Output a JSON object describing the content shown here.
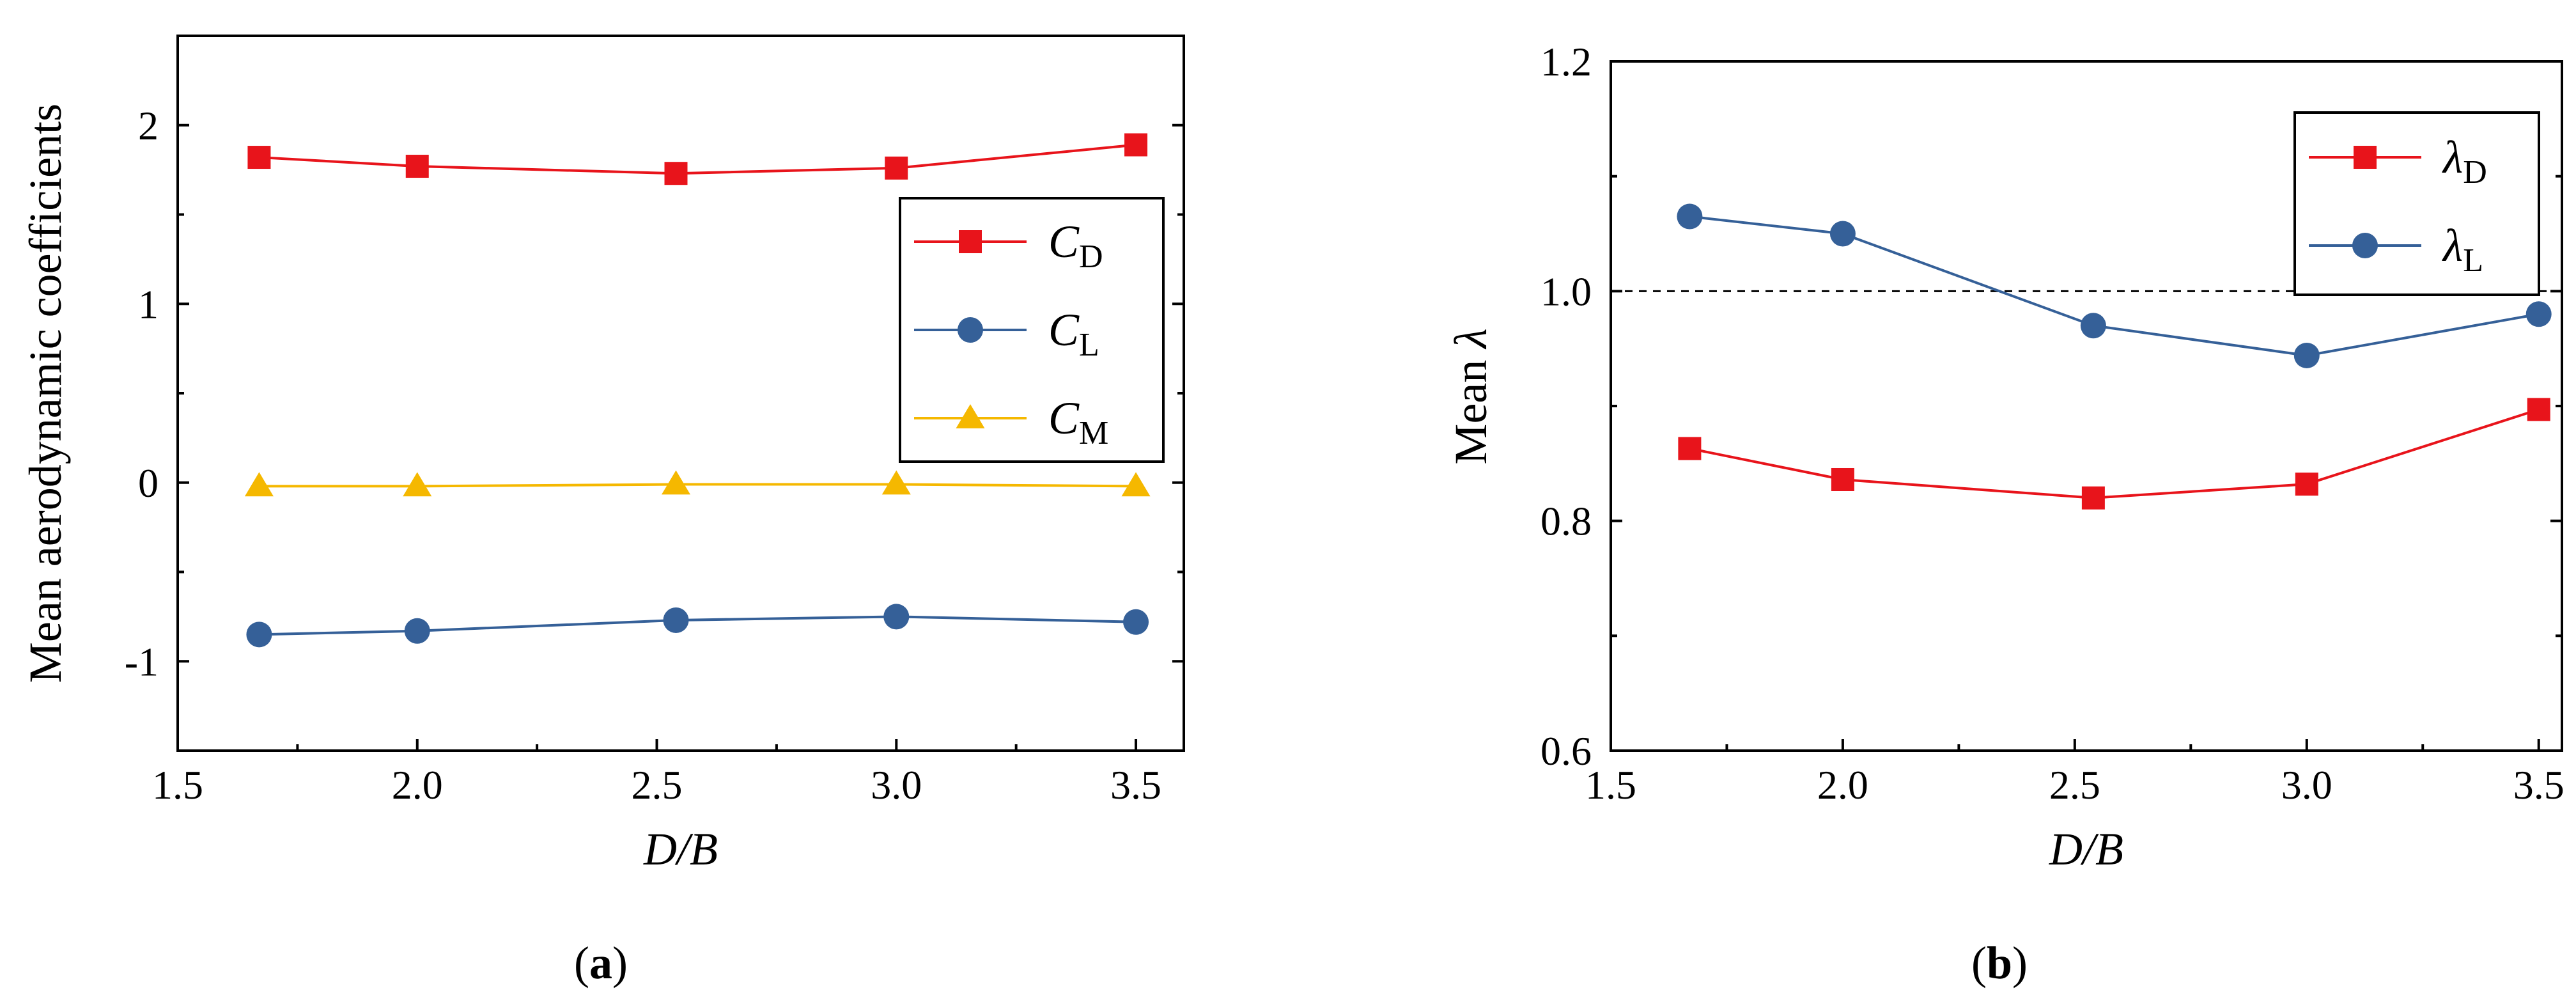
{
  "chart_data": [
    {
      "type": "line",
      "panel": "a",
      "caption": {
        "open": "(",
        "letter": "a",
        "close": ")"
      },
      "xlabel": "D/B",
      "ylabel": "Mean aerodynamic coefficients",
      "xlim": [
        1.5,
        3.6
      ],
      "ylim": [
        -1.5,
        2.5
      ],
      "xticks": [
        1.5,
        2.0,
        2.5,
        3.0,
        3.5
      ],
      "xtick_labels": [
        "1.5",
        "2.0",
        "2.5",
        "3.0",
        "3.5"
      ],
      "yticks": [
        -1,
        0,
        1,
        2
      ],
      "ytick_labels": [
        "-1",
        "0",
        "1",
        "2"
      ],
      "legend_position": "right-middle",
      "x": [
        1.67,
        2.0,
        2.54,
        3.0,
        3.5
      ],
      "series": [
        {
          "name": "C",
          "sub": "D",
          "color": "#e8141b",
          "marker": "square",
          "values": [
            1.82,
            1.77,
            1.73,
            1.76,
            1.89
          ]
        },
        {
          "name": "C",
          "sub": "L",
          "color": "#356098",
          "marker": "circle",
          "values": [
            -0.85,
            -0.83,
            -0.77,
            -0.75,
            -0.78
          ]
        },
        {
          "name": "C",
          "sub": "M",
          "color": "#f5b800",
          "marker": "triangle",
          "values": [
            -0.02,
            -0.02,
            -0.01,
            -0.01,
            -0.02
          ]
        }
      ]
    },
    {
      "type": "line",
      "panel": "b",
      "caption": {
        "open": "(",
        "letter": "b",
        "close": ")"
      },
      "xlabel": "D/B",
      "ylabel": "Mean λ",
      "ylabel_text": "Mean ",
      "ylabel_symbol": "λ",
      "xlim": [
        1.5,
        3.55
      ],
      "ylim": [
        0.6,
        1.2
      ],
      "xticks": [
        1.5,
        2.0,
        2.5,
        3.0,
        3.5
      ],
      "xtick_labels": [
        "1.5",
        "2.0",
        "2.5",
        "3.0",
        "3.5"
      ],
      "yticks": [
        0.6,
        0.8,
        1.0,
        1.2
      ],
      "ytick_labels": [
        "0.6",
        "0.8",
        "1.0",
        "1.2"
      ],
      "reference_line": {
        "y": 1.0,
        "style": "dashed"
      },
      "legend_position": "top-right",
      "x": [
        1.67,
        2.0,
        2.54,
        3.0,
        3.5
      ],
      "series": [
        {
          "name": "λ",
          "sub": "D",
          "color": "#e8141b",
          "marker": "square",
          "values": [
            0.863,
            0.836,
            0.82,
            0.832,
            0.897
          ]
        },
        {
          "name": "λ",
          "sub": "L",
          "color": "#356098",
          "marker": "circle",
          "values": [
            1.065,
            1.05,
            0.97,
            0.944,
            0.98
          ]
        }
      ]
    }
  ]
}
